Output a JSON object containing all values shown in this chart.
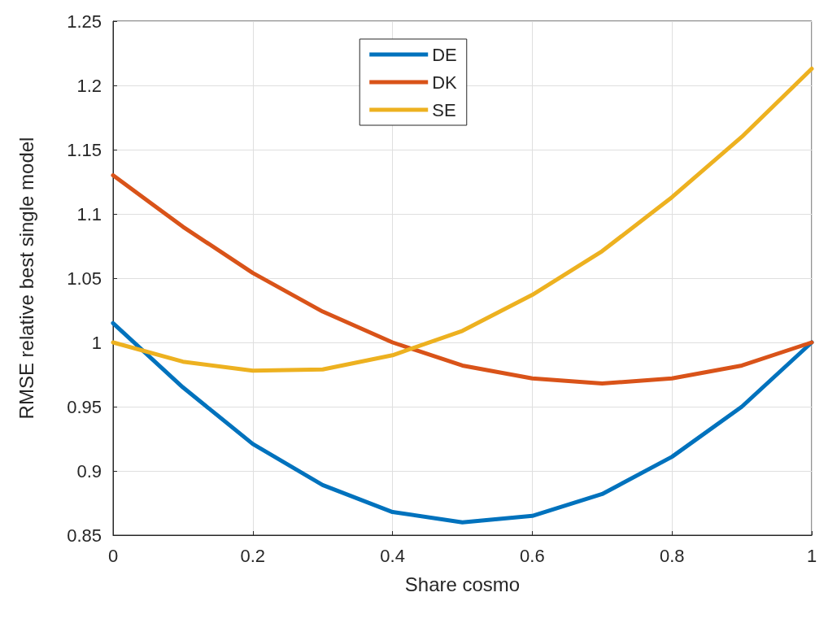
{
  "chart_data": {
    "type": "line",
    "xlabel": "Share cosmo",
    "ylabel": "RMSE relative best single model",
    "x": [
      0,
      0.1,
      0.2,
      0.3,
      0.4,
      0.5,
      0.6,
      0.7,
      0.8,
      0.9,
      1
    ],
    "series": [
      {
        "name": "DE",
        "color": "#0072bd",
        "values": [
          1.015,
          0.965,
          0.921,
          0.889,
          0.868,
          0.86,
          0.865,
          0.882,
          0.911,
          0.95,
          1.0
        ]
      },
      {
        "name": "DK",
        "color": "#d95319",
        "values": [
          1.13,
          1.09,
          1.054,
          1.024,
          1.0,
          0.982,
          0.972,
          0.968,
          0.972,
          0.982,
          1.0
        ]
      },
      {
        "name": "SE",
        "color": "#edb120",
        "values": [
          1.0,
          0.985,
          0.978,
          0.979,
          0.99,
          1.009,
          1.037,
          1.071,
          1.113,
          1.16,
          1.213
        ]
      }
    ],
    "xlim": [
      0,
      1
    ],
    "xticks": [
      0,
      0.2,
      0.4,
      0.6,
      0.8,
      1
    ],
    "ylim": [
      0.85,
      1.25
    ],
    "yticks": [
      0.85,
      0.9,
      0.95,
      1,
      1.05,
      1.1,
      1.15,
      1.2,
      1.25
    ],
    "grid": true,
    "legend": "top",
    "marker": "none",
    "line_style": "solid"
  }
}
